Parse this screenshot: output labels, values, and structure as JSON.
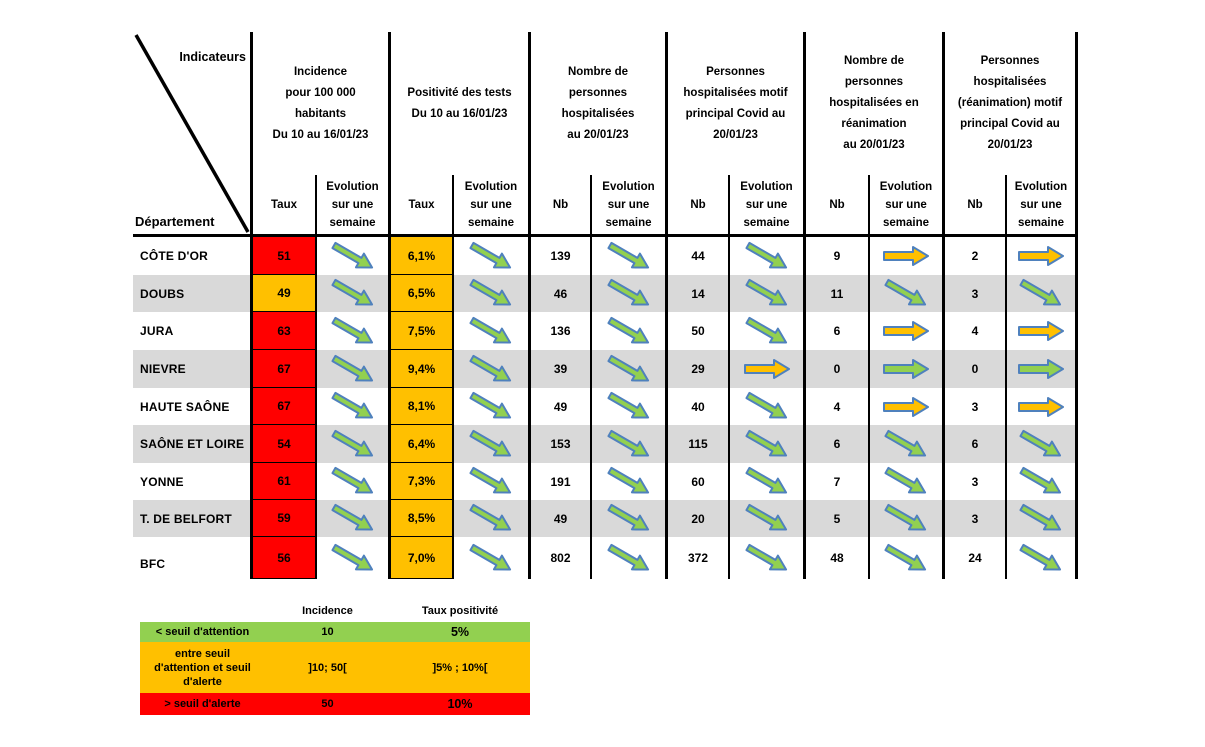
{
  "colors": {
    "red": "#FF0000",
    "orange": "#FFC000",
    "green": "#92D050",
    "stripe_gray": "#D9D9D9",
    "arrow_green": "#92D050",
    "arrow_orange": "#FFC000",
    "arrow_border": "#4F81BD"
  },
  "table": {
    "corner_top": "Indicateurs",
    "corner_bottom": "Département",
    "groups": [
      {
        "id": "incidence",
        "title": "Incidence\npour 100 000\nhabitants\nDu 10 au 16/01/23",
        "value_label": "Taux",
        "evolution_label": "Evolution\nsur une\nsemaine"
      },
      {
        "id": "positivite",
        "title": "Positivité des tests\nDu 10 au 16/01/23",
        "value_label": "Taux",
        "evolution_label": "Evolution\nsur une\nsemaine"
      },
      {
        "id": "hospitalisations",
        "title": "Nombre de\npersonnes\nhospitalisées\nau 20/01/23",
        "value_label": "Nb",
        "evolution_label": "Evolution\nsur une\nsemaine"
      },
      {
        "id": "hosp-motif-covid",
        "title": "Personnes\nhospitalisées motif\nprincipal Covid au\n20/01/23",
        "value_label": "Nb",
        "evolution_label": "Evolution\nsur une\nsemaine"
      },
      {
        "id": "reanimation",
        "title": "Nombre de\npersonnes\nhospitalisées en\nréanimation\nau 20/01/23",
        "value_label": "Nb",
        "evolution_label": "Evolution\nsur une\nsemaine"
      },
      {
        "id": "rea-motif-covid",
        "title": "Personnes\nhospitalisées\n(réanimation) motif\nprincipal Covid au\n20/01/23",
        "value_label": "Nb",
        "evolution_label": "Evolution\nsur une\nsemaine"
      }
    ],
    "rows": [
      {
        "department": "CÔTE D'OR",
        "cells": [
          {
            "value": "51",
            "bg": "red"
          },
          {
            "arrow": "green-diag"
          },
          {
            "value": "6,1%",
            "bg": "orange"
          },
          {
            "arrow": "green-diag"
          },
          {
            "value": "139"
          },
          {
            "arrow": "green-diag"
          },
          {
            "value": "44"
          },
          {
            "arrow": "green-diag"
          },
          {
            "value": "9"
          },
          {
            "arrow": "orange-right"
          },
          {
            "value": "2"
          },
          {
            "arrow": "orange-right"
          }
        ]
      },
      {
        "department": "DOUBS",
        "cells": [
          {
            "value": "49",
            "bg": "orange"
          },
          {
            "arrow": "green-diag"
          },
          {
            "value": "6,5%",
            "bg": "orange"
          },
          {
            "arrow": "green-diag"
          },
          {
            "value": "46"
          },
          {
            "arrow": "green-diag"
          },
          {
            "value": "14"
          },
          {
            "arrow": "green-diag"
          },
          {
            "value": "11"
          },
          {
            "arrow": "green-diag"
          },
          {
            "value": "3"
          },
          {
            "arrow": "green-diag"
          }
        ]
      },
      {
        "department": "JURA",
        "cells": [
          {
            "value": "63",
            "bg": "red"
          },
          {
            "arrow": "green-diag"
          },
          {
            "value": "7,5%",
            "bg": "orange"
          },
          {
            "arrow": "green-diag"
          },
          {
            "value": "136"
          },
          {
            "arrow": "green-diag"
          },
          {
            "value": "50"
          },
          {
            "arrow": "green-diag"
          },
          {
            "value": "6"
          },
          {
            "arrow": "orange-right"
          },
          {
            "value": "4"
          },
          {
            "arrow": "orange-right"
          }
        ]
      },
      {
        "department": "NIEVRE",
        "cells": [
          {
            "value": "67",
            "bg": "red"
          },
          {
            "arrow": "green-diag"
          },
          {
            "value": "9,4%",
            "bg": "orange"
          },
          {
            "arrow": "green-diag"
          },
          {
            "value": "39"
          },
          {
            "arrow": "green-diag"
          },
          {
            "value": "29"
          },
          {
            "arrow": "orange-right"
          },
          {
            "value": "0"
          },
          {
            "arrow": "green-right"
          },
          {
            "value": "0"
          },
          {
            "arrow": "green-right"
          }
        ]
      },
      {
        "department": "HAUTE SAÔNE",
        "cells": [
          {
            "value": "67",
            "bg": "red"
          },
          {
            "arrow": "green-diag"
          },
          {
            "value": "8,1%",
            "bg": "orange"
          },
          {
            "arrow": "green-diag"
          },
          {
            "value": "49"
          },
          {
            "arrow": "green-diag"
          },
          {
            "value": "40"
          },
          {
            "arrow": "green-diag"
          },
          {
            "value": "4"
          },
          {
            "arrow": "orange-right"
          },
          {
            "value": "3"
          },
          {
            "arrow": "orange-right"
          }
        ]
      },
      {
        "department": "SAÔNE ET LOIRE",
        "cells": [
          {
            "value": "54",
            "bg": "red"
          },
          {
            "arrow": "green-diag"
          },
          {
            "value": "6,4%",
            "bg": "orange"
          },
          {
            "arrow": "green-diag"
          },
          {
            "value": "153"
          },
          {
            "arrow": "green-diag"
          },
          {
            "value": "115"
          },
          {
            "arrow": "green-diag"
          },
          {
            "value": "6"
          },
          {
            "arrow": "green-diag"
          },
          {
            "value": "6"
          },
          {
            "arrow": "green-diag"
          }
        ]
      },
      {
        "department": "YONNE",
        "cells": [
          {
            "value": "61",
            "bg": "red"
          },
          {
            "arrow": "green-diag"
          },
          {
            "value": "7,3%",
            "bg": "orange"
          },
          {
            "arrow": "green-diag"
          },
          {
            "value": "191"
          },
          {
            "arrow": "green-diag"
          },
          {
            "value": "60"
          },
          {
            "arrow": "green-diag"
          },
          {
            "value": "7"
          },
          {
            "arrow": "green-diag"
          },
          {
            "value": "3"
          },
          {
            "arrow": "green-diag"
          }
        ]
      },
      {
        "department": "T. DE BELFORT",
        "cells": [
          {
            "value": "59",
            "bg": "red"
          },
          {
            "arrow": "green-diag"
          },
          {
            "value": "8,5%",
            "bg": "orange"
          },
          {
            "arrow": "green-diag"
          },
          {
            "value": "49"
          },
          {
            "arrow": "green-diag"
          },
          {
            "value": "20"
          },
          {
            "arrow": "green-diag"
          },
          {
            "value": "5"
          },
          {
            "arrow": "green-diag"
          },
          {
            "value": "3"
          },
          {
            "arrow": "green-diag"
          }
        ]
      },
      {
        "department": "BFC",
        "cells": [
          {
            "value": "56",
            "bg": "red"
          },
          {
            "arrow": "green-diag"
          },
          {
            "value": "7,0%",
            "bg": "orange"
          },
          {
            "arrow": "green-diag"
          },
          {
            "value": "802"
          },
          {
            "arrow": "green-diag"
          },
          {
            "value": "372"
          },
          {
            "arrow": "green-diag"
          },
          {
            "value": "48"
          },
          {
            "arrow": "green-diag"
          },
          {
            "value": "24"
          },
          {
            "arrow": "green-diag"
          }
        ]
      }
    ]
  },
  "legend": {
    "headers": {
      "incidence": "Incidence",
      "positivite": "Taux positivité"
    },
    "rows": [
      {
        "color": "green",
        "label": "< seuil d'attention",
        "incidence": "10",
        "positivite": "5%"
      },
      {
        "color": "orange",
        "label": "entre seuil d'attention et seuil d'alerte",
        "incidence": "]10; 50[",
        "positivite": "]5% ; 10%["
      },
      {
        "color": "red",
        "label": "> seuil d'alerte",
        "incidence": "50",
        "positivite": "10%"
      }
    ]
  },
  "chart_data": {
    "type": "table",
    "row_header": "Département",
    "columns": [
      "Incidence pour 100 000 habitants Du 10 au 16/01/23 - Taux",
      "Incidence - Evolution sur une semaine",
      "Positivité des tests Du 10 au 16/01/23 - Taux",
      "Positivité - Evolution sur une semaine",
      "Nombre de personnes hospitalisées au 20/01/23 - Nb",
      "Hospitalisées - Evolution sur une semaine",
      "Personnes hospitalisées motif principal Covid au 20/01/23 - Nb",
      "Motif Covid - Evolution sur une semaine",
      "Nombre de personnes hospitalisées en réanimation au 20/01/23 - Nb",
      "Réanimation - Evolution sur une semaine",
      "Personnes hospitalisées (réanimation) motif principal Covid au 20/01/23 - Nb",
      "Réanimation motif Covid - Evolution sur une semaine"
    ],
    "rows": [
      [
        "CÔTE D'OR",
        51,
        "baisse",
        "6,1%",
        "baisse",
        139,
        "baisse",
        44,
        "baisse",
        9,
        "stable",
        2,
        "stable"
      ],
      [
        "DOUBS",
        49,
        "baisse",
        "6,5%",
        "baisse",
        46,
        "baisse",
        14,
        "baisse",
        11,
        "baisse",
        3,
        "baisse"
      ],
      [
        "JURA",
        63,
        "baisse",
        "7,5%",
        "baisse",
        136,
        "baisse",
        50,
        "baisse",
        6,
        "stable",
        4,
        "stable"
      ],
      [
        "NIEVRE",
        67,
        "baisse",
        "9,4%",
        "baisse",
        39,
        "baisse",
        29,
        "stable",
        0,
        "stable-vert",
        0,
        "stable-vert"
      ],
      [
        "HAUTE SAÔNE",
        67,
        "baisse",
        "8,1%",
        "baisse",
        49,
        "baisse",
        40,
        "baisse",
        4,
        "stable",
        3,
        "stable"
      ],
      [
        "SAÔNE ET LOIRE",
        54,
        "baisse",
        "6,4%",
        "baisse",
        153,
        "baisse",
        115,
        "baisse",
        6,
        "baisse",
        6,
        "baisse"
      ],
      [
        "YONNE",
        61,
        "baisse",
        "7,3%",
        "baisse",
        191,
        "baisse",
        60,
        "baisse",
        7,
        "baisse",
        3,
        "baisse"
      ],
      [
        "T. DE BELFORT",
        59,
        "baisse",
        "8,5%",
        "baisse",
        49,
        "baisse",
        20,
        "baisse",
        5,
        "baisse",
        3,
        "baisse"
      ],
      [
        "BFC",
        56,
        "baisse",
        "7,0%",
        "baisse",
        802,
        "baisse",
        372,
        "baisse",
        48,
        "baisse",
        24,
        "baisse"
      ]
    ],
    "thresholds": {
      "incidence": {
        "attention": "10",
        "entre": "]10; 50[",
        "alerte": "50"
      },
      "taux_positivite": {
        "attention": "5%",
        "entre": "]5% ; 10%[",
        "alerte": "10%"
      }
    }
  }
}
